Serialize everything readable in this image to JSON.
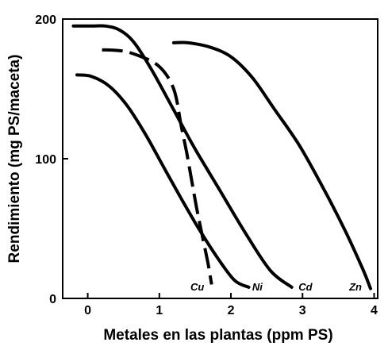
{
  "chart_data": {
    "type": "line",
    "title": "",
    "xlabel": "Metales en las plantas (ppm PS)",
    "ylabel": "Rendimiento (mg PS/maceta)",
    "xlim": [
      -0.35,
      4.05
    ],
    "ylim": [
      0,
      200
    ],
    "xticks": [
      0,
      1,
      2,
      3,
      4
    ],
    "xtick_labels": [
      "0",
      "1",
      "2",
      "3",
      "4"
    ],
    "yticks": [
      0,
      100,
      200
    ],
    "ytick_labels": [
      "0",
      "100",
      "200"
    ],
    "grid": false,
    "legend": "none (curves labeled directly at their ends)",
    "series": [
      {
        "name": "Cu",
        "style": "dashed",
        "color": "#000000",
        "x": [
          0.2,
          0.5,
          0.75,
          0.95,
          1.1,
          1.2,
          1.25,
          1.3,
          1.38,
          1.45,
          1.52,
          1.6,
          1.68,
          1.73
        ],
        "y": [
          178,
          177,
          173,
          168,
          160,
          150,
          140,
          125,
          105,
          85,
          65,
          45,
          25,
          10
        ]
      },
      {
        "name": "Ni",
        "style": "solid",
        "color": "#000000",
        "x": [
          -0.15,
          0.05,
          0.3,
          0.55,
          0.8,
          1.05,
          1.3,
          1.55,
          1.8,
          2.05,
          2.25
        ],
        "y": [
          160,
          159,
          152,
          138,
          118,
          95,
          72,
          50,
          30,
          13,
          8
        ]
      },
      {
        "name": "Cd",
        "style": "solid",
        "color": "#000000",
        "x": [
          -0.2,
          0.05,
          0.25,
          0.45,
          0.65,
          0.9,
          1.2,
          1.5,
          1.85,
          2.2,
          2.55,
          2.85
        ],
        "y": [
          195,
          195,
          195,
          192,
          183,
          163,
          135,
          107,
          77,
          47,
          20,
          8
        ]
      },
      {
        "name": "Zn",
        "style": "solid",
        "color": "#000000",
        "x": [
          1.2,
          1.4,
          1.7,
          2.0,
          2.3,
          2.6,
          2.95,
          3.3,
          3.6,
          3.85,
          3.95
        ],
        "y": [
          183,
          183,
          180,
          173,
          158,
          136,
          110,
          78,
          48,
          20,
          7
        ]
      }
    ],
    "annotations": [
      {
        "text": "Cu",
        "x": 1.53,
        "y": 8
      },
      {
        "text": "Ni",
        "x": 2.37,
        "y": 8
      },
      {
        "text": "Cd",
        "x": 3.04,
        "y": 8
      },
      {
        "text": "Zn",
        "x": 3.74,
        "y": 8
      }
    ]
  }
}
